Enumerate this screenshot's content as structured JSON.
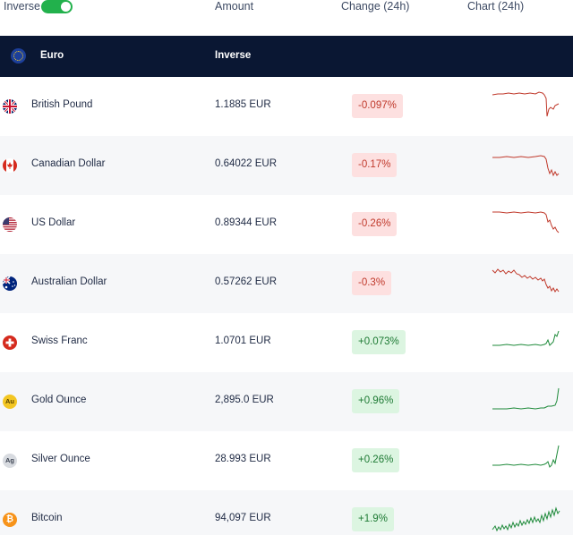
{
  "header": {
    "inverse_label": "Inverse",
    "inverse_on": true,
    "col_amount": "Amount",
    "col_change": "Change (24h)",
    "col_chart": "Chart (24h)"
  },
  "base": {
    "currency": "Euro",
    "mode": "Inverse"
  },
  "colors": {
    "negative": "#c0392b",
    "positive": "#1e8a3a",
    "toggle_on": "#22b14c",
    "band": "#0a1733"
  },
  "rows": [
    {
      "icon": "uk-flag-icon",
      "name": "British Pound",
      "amount": "1.1885 EUR",
      "change": "-0.097%",
      "trend": "negative"
    },
    {
      "icon": "canada-flag-icon",
      "name": "Canadian Dollar",
      "amount": "0.64022 EUR",
      "change": "-0.17%",
      "trend": "negative"
    },
    {
      "icon": "us-flag-icon",
      "name": "US Dollar",
      "amount": "0.89344 EUR",
      "change": "-0.26%",
      "trend": "negative"
    },
    {
      "icon": "australia-flag-icon",
      "name": "Australian Dollar",
      "amount": "0.57262 EUR",
      "change": "-0.3%",
      "trend": "negative"
    },
    {
      "icon": "switzerland-flag-icon",
      "name": "Swiss Franc",
      "amount": "1.0701 EUR",
      "change": "+0.073%",
      "trend": "positive"
    },
    {
      "icon": "gold-coin-icon",
      "name": "Gold Ounce",
      "amount": "2,895.0 EUR",
      "change": "+0.96%",
      "trend": "positive",
      "symbol": "Au"
    },
    {
      "icon": "silver-coin-icon",
      "name": "Silver Ounce",
      "amount": "28.993 EUR",
      "change": "+0.26%",
      "trend": "positive",
      "symbol": "Ag"
    },
    {
      "icon": "bitcoin-icon",
      "name": "Bitcoin",
      "amount": "94,097 EUR",
      "change": "+1.9%",
      "trend": "positive",
      "symbol": "₿"
    }
  ]
}
